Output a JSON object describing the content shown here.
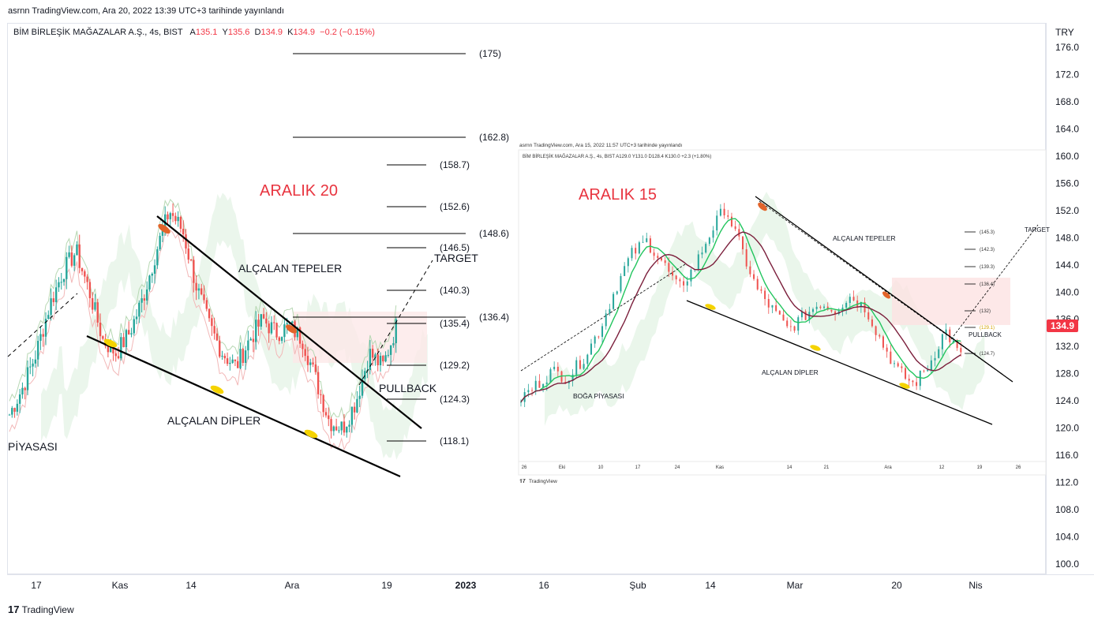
{
  "header": {
    "published_line": "asrnn TradingView.com, Ara 20, 2022 13:39 UTC+3 tarihinde yayınlandı"
  },
  "legend": {
    "symbol": "BİM BİRLEŞİK MAĞAZALAR A.Ş., 4s, BIST",
    "o_label": "A",
    "o_value": "135.1",
    "h_label": "Y",
    "h_value": "135.6",
    "l_label": "D",
    "l_value": "134.9",
    "c_label": "K",
    "c_value": "134.9",
    "change": "−0.2 (−0.15%)"
  },
  "price_axis": {
    "currency": "TRY",
    "last_price": "134.9",
    "colors": {
      "last_price": "#f23645"
    }
  },
  "time_axis": {
    "labels": [
      "17",
      "Kas",
      "14",
      "Ara",
      "19",
      "2023",
      "16",
      "Şub",
      "14",
      "Mar",
      "20",
      "Nis"
    ]
  },
  "brand": "TradingView",
  "left_chart": {
    "title": "ARALIK 20",
    "labels": {
      "tops": "ALÇALAN TEPELER",
      "bottoms": "ALÇALAN DİPLER",
      "target": "TARGET",
      "pullback": "PULLBACK",
      "bull": "PİYASASI"
    },
    "levels": [
      "(175)",
      "(162.8)",
      "(158.7)",
      "(152.6)",
      "(148.6)",
      "(146.5)",
      "(140.3)",
      "(136.4)",
      "(135.4)",
      "(129.2)",
      "(124.3)",
      "(118.1)"
    ]
  },
  "inset_chart": {
    "published_line": "asrnn TradingView.com, Ara 15, 2022 11:57 UTC+3 tarihinde yayınlandı",
    "legend": "BİM BİRLEŞİK MAĞAZALAR A.Ş., 4s, BIST A129.0 Y131.0 D128.4 K130.0 +2.3 (+1.80%)",
    "title": "ARALIK 15",
    "labels": {
      "tops": "ALÇALAN TEPELER",
      "bottoms": "ALÇALAN DİPLER",
      "bull": "BOĞA PİYASASI",
      "target": "TARGET",
      "pullback": "PULLBACK"
    },
    "levels": [
      "(145.3)",
      "(142.3)",
      "(139.3)",
      "(136.4)",
      "(132)",
      "(129.1)",
      "(124.7)"
    ],
    "time_labels": [
      "26",
      "Eki",
      "10",
      "17",
      "24",
      "Kas",
      "14",
      "21",
      "Ara",
      "12",
      "19",
      "26"
    ],
    "brand": "TradingView"
  },
  "chart_data": {
    "type": "candlestick",
    "title": "BİM BİRLEŞİK MAĞAZALAR A.Ş., 4s, BIST",
    "ylabel": "TRY",
    "ylim": [
      98,
      178
    ],
    "y_ticks": [
      176,
      172,
      168,
      164,
      160,
      156,
      152,
      148,
      144,
      140,
      136,
      132,
      128,
      124,
      120,
      116,
      112,
      108,
      104,
      100
    ],
    "x_ticks": [
      "17",
      "Kas",
      "14",
      "Ara",
      "19",
      "2023",
      "16",
      "Şub",
      "14",
      "Mar",
      "20",
      "Nis"
    ],
    "last": {
      "open": 135.1,
      "high": 135.6,
      "low": 134.9,
      "close": 134.9,
      "change": -0.2,
      "change_pct": -0.15
    },
    "fib_levels": [
      175,
      162.8,
      158.7,
      152.6,
      148.6,
      146.5,
      140.3,
      136.4,
      135.4,
      129.2,
      124.3,
      118.1
    ],
    "approx_closes": [
      122,
      126,
      131,
      138,
      143,
      146,
      140,
      133,
      131,
      134,
      139,
      146,
      152,
      149,
      141,
      135,
      131,
      129,
      133,
      136,
      134,
      135,
      133,
      127,
      121,
      120,
      124,
      131,
      129,
      134.9
    ],
    "grid": false
  }
}
